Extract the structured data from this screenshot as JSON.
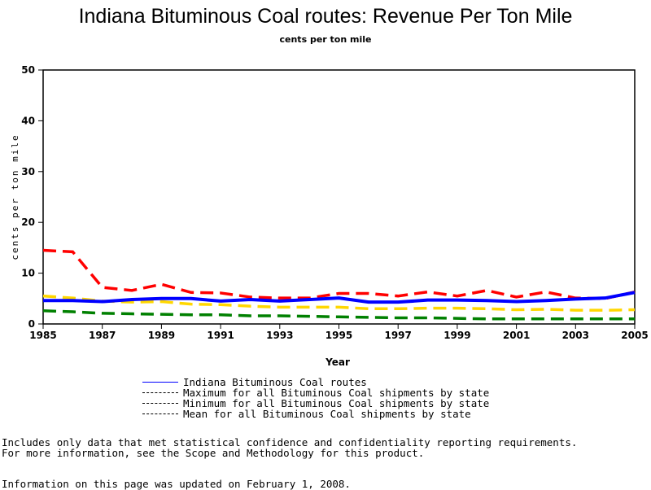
{
  "chart_data": {
    "type": "line",
    "title": "Indiana Bituminous Coal routes: Revenue Per Ton Mile",
    "subtitle": "cents per ton mile",
    "xlabel": "Year",
    "ylabel": "cents per ton mile",
    "xlim": [
      1985,
      2005
    ],
    "ylim": [
      0,
      50
    ],
    "xticks": [
      "1985",
      "1987",
      "1989",
      "1991",
      "1993",
      "1995",
      "1997",
      "1999",
      "2001",
      "2003",
      "2005"
    ],
    "yticks": [
      "0",
      "10",
      "20",
      "30",
      "40",
      "50"
    ],
    "x": [
      1985,
      1986,
      1987,
      1988,
      1989,
      1990,
      1991,
      1992,
      1993,
      1994,
      1995,
      1996,
      1997,
      1998,
      1999,
      2000,
      2001,
      2002,
      2003,
      2004,
      2005
    ],
    "series": [
      {
        "name": "Indiana Bituminous Coal routes",
        "color": "#0000ff",
        "dash": "solid",
        "values": [
          4.6,
          4.6,
          4.4,
          4.8,
          5.0,
          5.0,
          4.5,
          4.8,
          4.5,
          4.8,
          5.1,
          4.3,
          4.3,
          4.7,
          4.7,
          4.6,
          4.4,
          4.6,
          4.9,
          5.1,
          6.2
        ]
      },
      {
        "name": "Maximum for all Bituminous Coal shipments by state",
        "color": "#ff0000",
        "dash": "dashed",
        "values": [
          14.5,
          14.2,
          7.2,
          6.6,
          7.8,
          6.2,
          6.1,
          5.3,
          5.1,
          5.1,
          6.0,
          6.0,
          5.5,
          6.3,
          5.5,
          6.6,
          5.3,
          6.3,
          5.1,
          5.0,
          6.3
        ]
      },
      {
        "name": "Minimum for all Bituminous Coal shipments by state",
        "color": "#008000",
        "dash": "dashed",
        "values": [
          2.6,
          2.4,
          2.1,
          2.0,
          1.9,
          1.8,
          1.8,
          1.6,
          1.6,
          1.5,
          1.4,
          1.3,
          1.2,
          1.2,
          1.1,
          1.0,
          1.0,
          1.0,
          1.0,
          1.0,
          1.0
        ]
      },
      {
        "name": "Mean for all Bituminous Coal shipments by state",
        "color": "#ffd700",
        "dash": "dashed",
        "values": [
          5.5,
          5.1,
          4.5,
          4.3,
          4.4,
          3.9,
          3.8,
          3.5,
          3.3,
          3.3,
          3.3,
          3.0,
          3.0,
          3.1,
          3.1,
          3.0,
          2.8,
          2.9,
          2.7,
          2.7,
          2.8
        ]
      }
    ],
    "legend": "bottom"
  },
  "notes": {
    "line1": "Includes only data that met statistical confidence and confidentiality reporting requirements.",
    "line2": "For more information, see the Scope and Methodology for this product.",
    "updated": "Information on this page was updated on February 1, 2008."
  }
}
